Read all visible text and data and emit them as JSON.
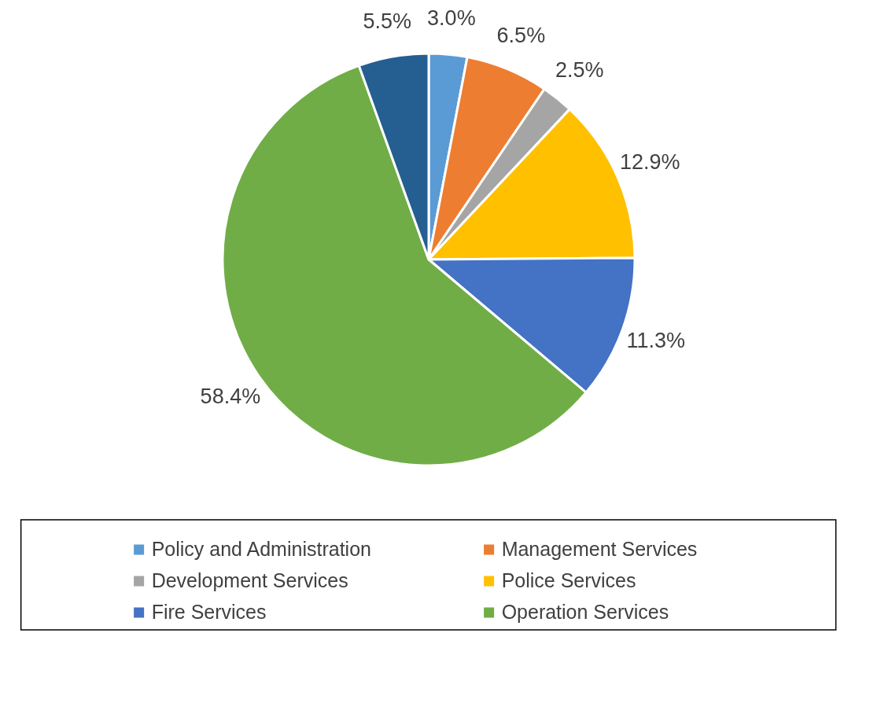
{
  "chart_data": {
    "type": "pie",
    "categories": [
      "Policy and Administration",
      "Management Services",
      "Development Services",
      "Police Services",
      "Fire Services",
      "Operation Services",
      null
    ],
    "values": [
      3.0,
      6.5,
      2.5,
      12.9,
      11.3,
      58.4,
      5.5
    ],
    "colors": [
      "#5b9bd5",
      "#ed7d31",
      "#a5a5a5",
      "#ffc000",
      "#4472c4",
      "#70ad47",
      "#255e91"
    ],
    "value_labels": [
      "3.0%",
      "6.5%",
      "2.5%",
      "12.9%",
      "11.3%",
      "58.4%",
      "5.5%"
    ],
    "legend": "bottom"
  }
}
